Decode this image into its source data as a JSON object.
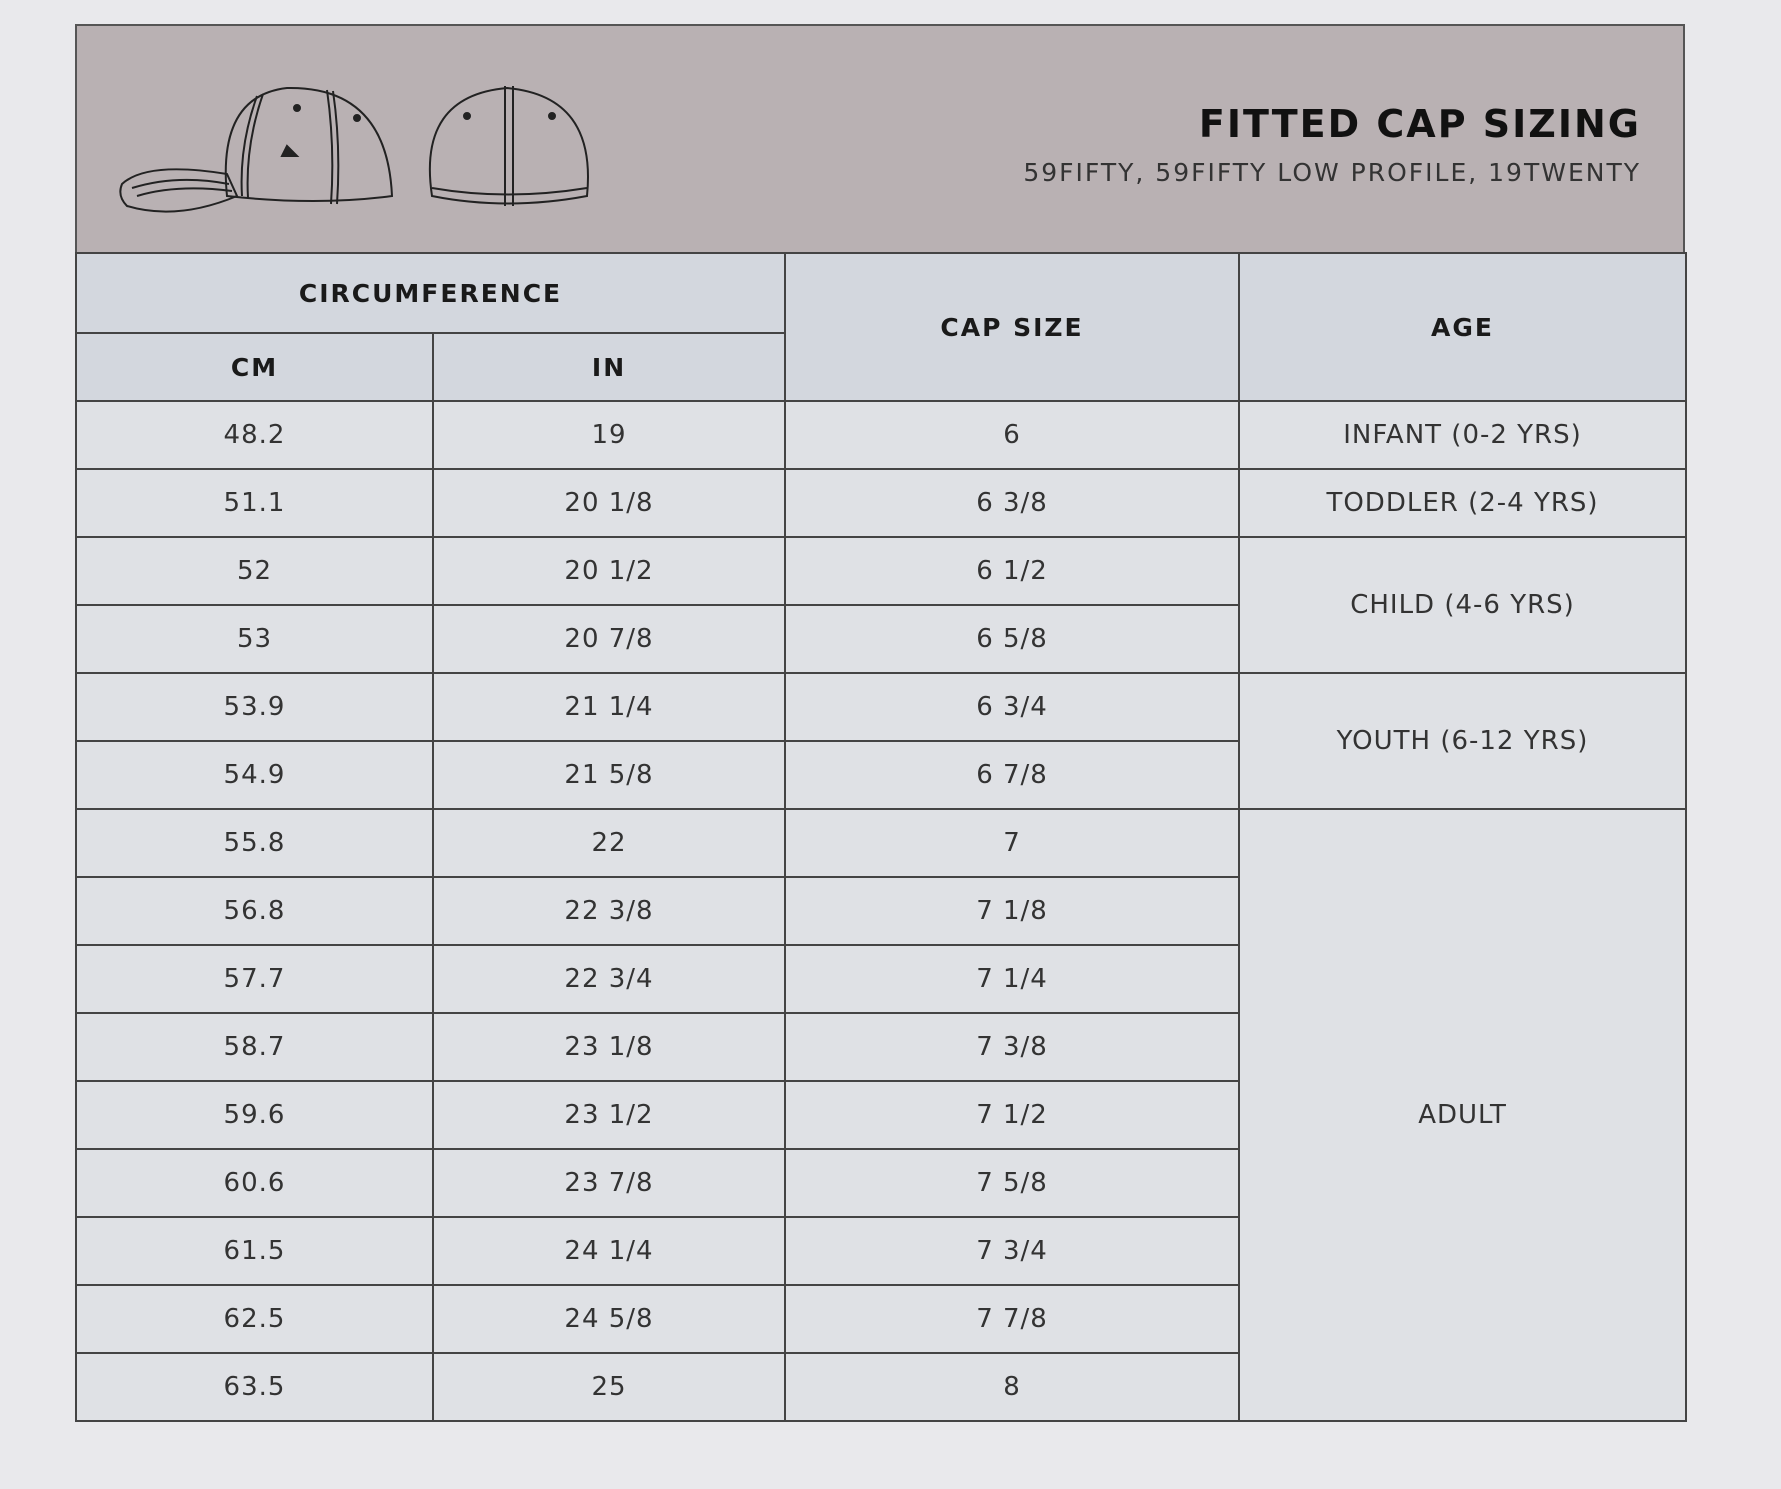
{
  "header": {
    "title": "FITTED CAP SIZING",
    "subtitle": "59FIFTY, 59FIFTY LOW PROFILE, 19TWENTY"
  },
  "table": {
    "group_header": "CIRCUMFERENCE",
    "columns": {
      "cm": "CM",
      "in": "IN",
      "cap_size": "CAP SIZE",
      "age": "AGE"
    },
    "rows": [
      {
        "cm": "48.2",
        "in": "19",
        "cap_size": "6"
      },
      {
        "cm": "51.1",
        "in": "20 1/8",
        "cap_size": "6 3/8"
      },
      {
        "cm": "52",
        "in": "20 1/2",
        "cap_size": "6 1/2"
      },
      {
        "cm": "53",
        "in": "20 7/8",
        "cap_size": "6 5/8"
      },
      {
        "cm": "53.9",
        "in": "21 1/4",
        "cap_size": "6 3/4"
      },
      {
        "cm": "54.9",
        "in": "21 5/8",
        "cap_size": "6 7/8"
      },
      {
        "cm": "55.8",
        "in": "22",
        "cap_size": "7"
      },
      {
        "cm": "56.8",
        "in": "22 3/8",
        "cap_size": "7 1/8"
      },
      {
        "cm": "57.7",
        "in": "22 3/4",
        "cap_size": "7 1/4"
      },
      {
        "cm": "58.7",
        "in": "23 1/8",
        "cap_size": "7 3/8"
      },
      {
        "cm": "59.6",
        "in": "23 1/2",
        "cap_size": "7 1/2"
      },
      {
        "cm": "60.6",
        "in": "23 7/8",
        "cap_size": "7 5/8"
      },
      {
        "cm": "61.5",
        "in": "24 1/4",
        "cap_size": "7 3/4"
      },
      {
        "cm": "62.5",
        "in": "24 5/8",
        "cap_size": "7 7/8"
      },
      {
        "cm": "63.5",
        "in": "25",
        "cap_size": "8"
      }
    ],
    "age_groups": [
      {
        "label": "INFANT (0-2 YRS)"
      },
      {
        "label": "TODDLER (2-4 YRS)"
      },
      {
        "label": "CHILD (4-6 YRS)"
      },
      {
        "label": "YOUTH (6-12 YRS)"
      },
      {
        "label": "ADULT"
      }
    ]
  },
  "colors": {
    "banner": "#b9b1b3",
    "header_cells": "#d3d7de",
    "body_cells": "#dfe1e5"
  }
}
